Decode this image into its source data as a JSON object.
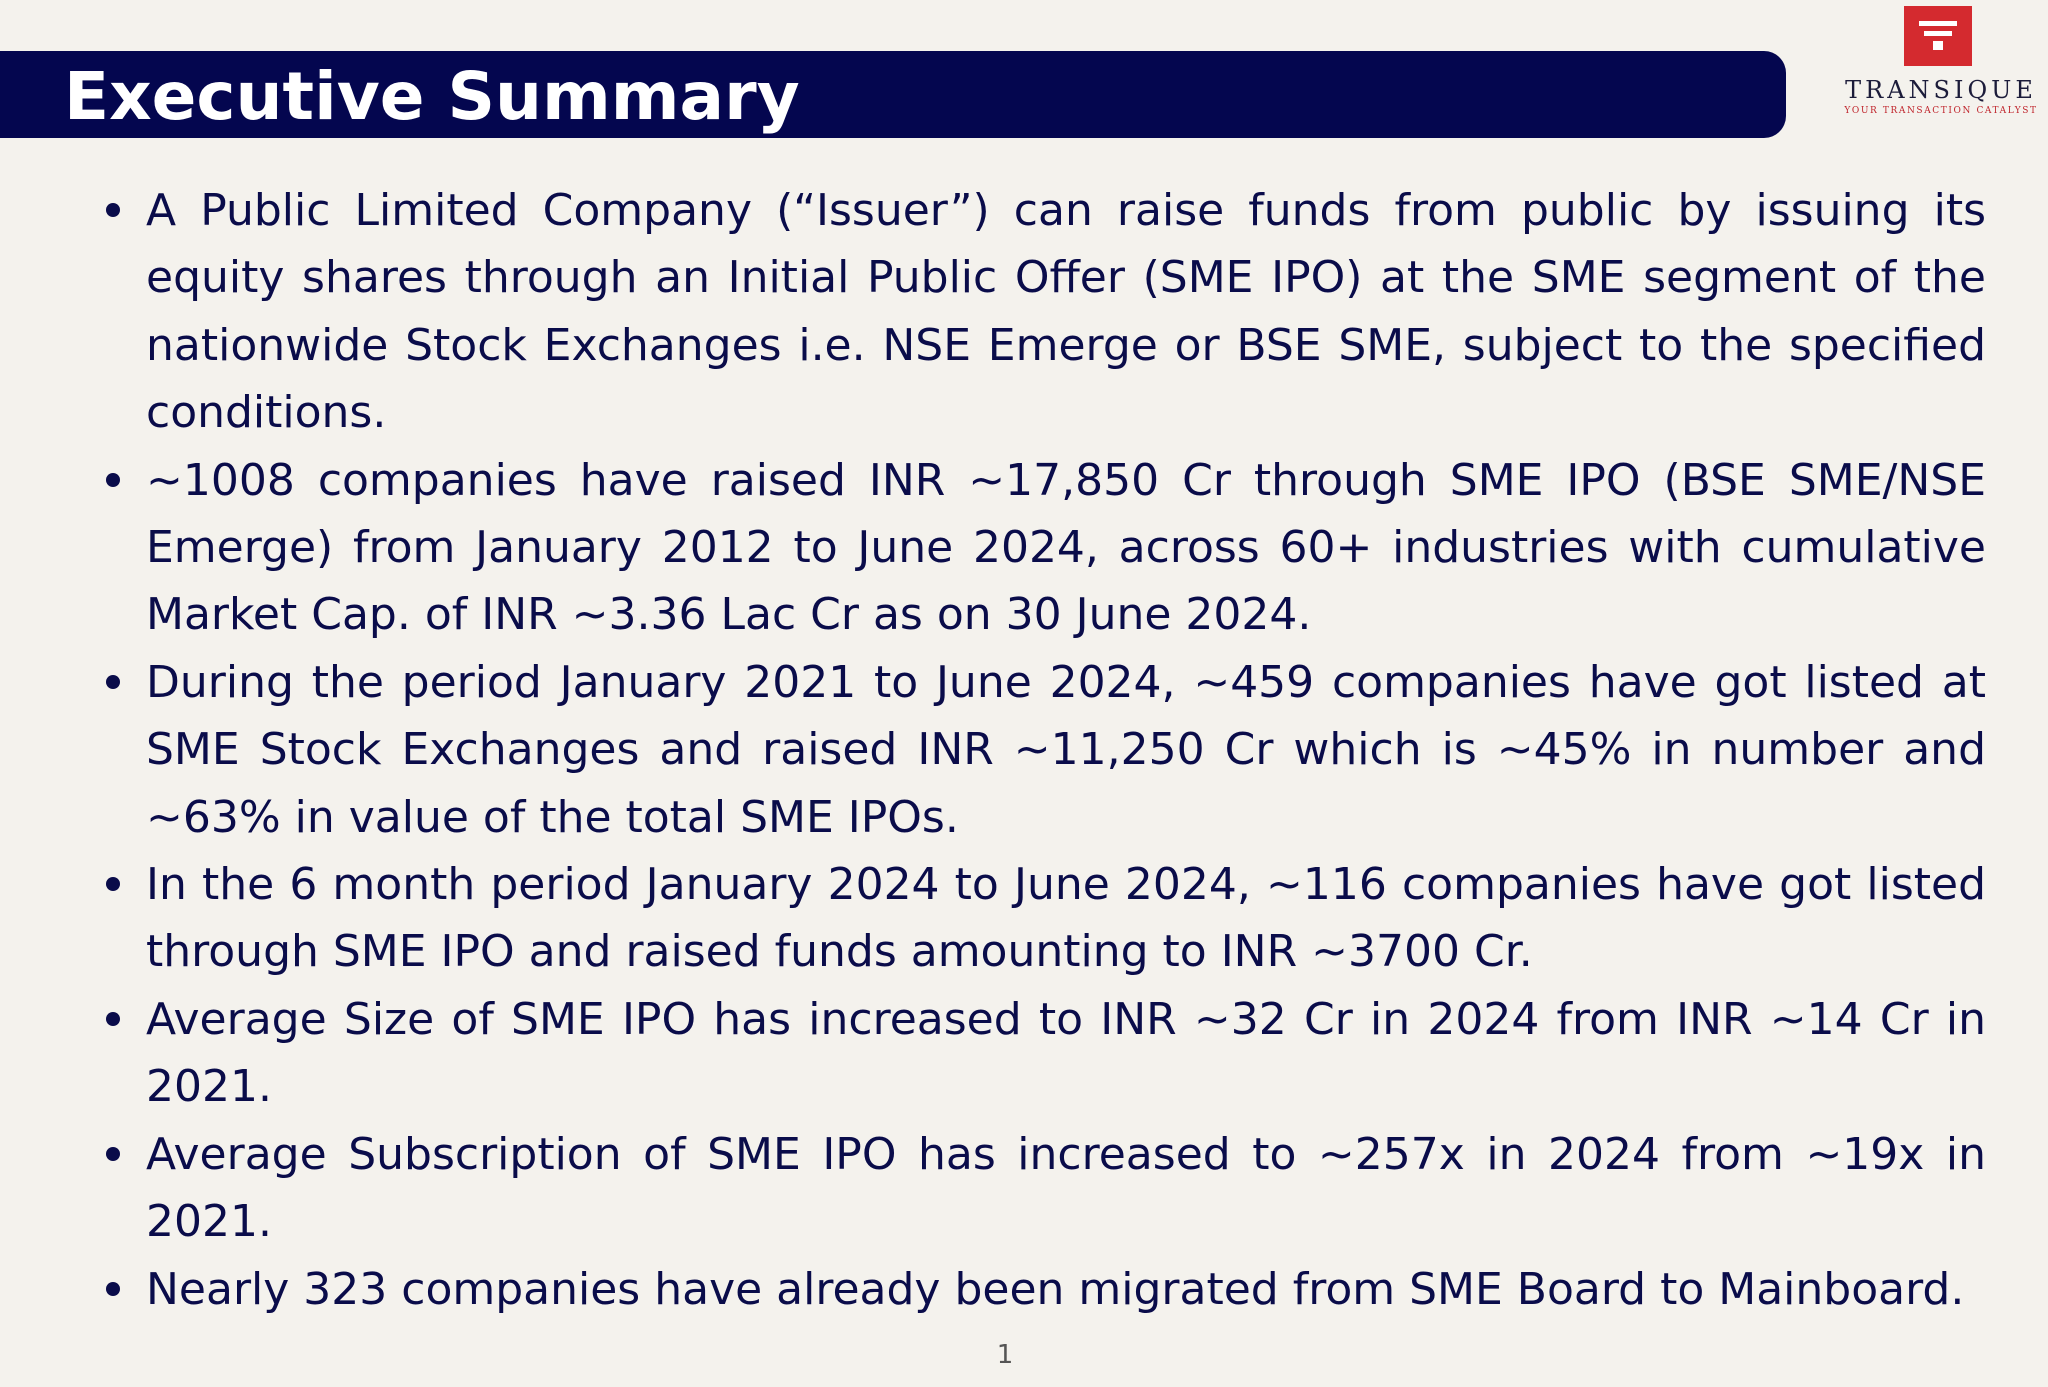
{
  "header": {
    "title": "Executive Summary"
  },
  "logo": {
    "name": "TRANSIQUE",
    "tagline": "YOUR TRANSACTION CATALYST",
    "accent_color": "#d42a2f"
  },
  "bullets": [
    "A Public Limited Company (“Issuer”) can raise funds from public by issuing its equity shares through an Initial Public Offer (SME IPO) at the SME segment of the nationwide Stock Exchanges i.e. NSE Emerge or BSE SME, subject to the specified conditions.",
    "~1008 companies have raised INR ~17,850 Cr through SME IPO (BSE SME/NSE Emerge) from January 2012 to June 2024, across 60+ industries with cumulative Market Cap. of INR ~3.36 Lac Cr as on 30 June 2024.",
    "During the period January 2021 to June 2024, ~459 companies have got listed at SME Stock Exchanges and raised INR ~11,250 Cr which is ~45% in number and ~63% in value of the total SME IPOs.",
    "In the 6 month period January 2024 to June 2024, ~116 companies have got listed through SME IPO and raised funds amounting to INR ~3700 Cr.",
    "Average Size of SME IPO has increased to INR ~32 Cr in 2024 from INR ~14 Cr in 2021.",
    "Average Subscription of SME IPO has increased to ~257x in 2024 from ~19x in 2021.",
    "Nearly 323 companies have already been migrated from SME Board to Mainboard."
  ],
  "footer": {
    "page_number": "1"
  },
  "colors": {
    "background": "#f4f2ed",
    "title_bar": "#04064f",
    "body_text": "#0a0c4a"
  }
}
